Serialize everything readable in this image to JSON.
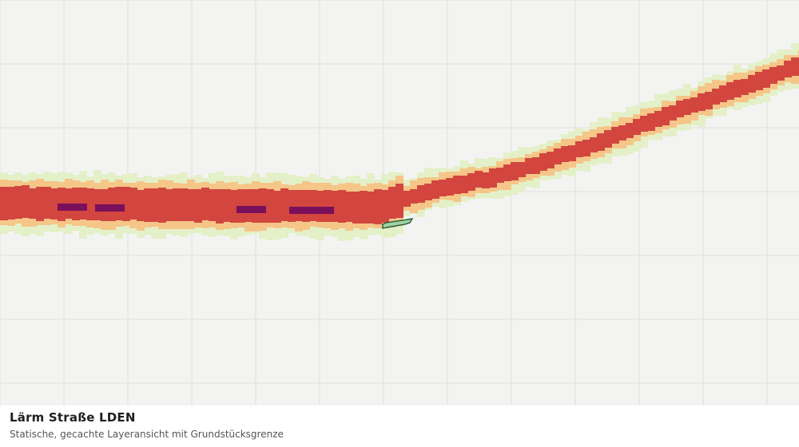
{
  "layer": {
    "title": "Lärm Straße LDEN",
    "subtitle": "Statische, gecachte Layeransicht mit Grundstücksgrenze"
  },
  "legend_colors": {
    "lowest": "#e4f0c8",
    "low": "#f5c688",
    "high": "#d2463f",
    "highest": "#7a0f5c"
  },
  "map": {
    "background": "#f3f4f2",
    "grid_color": "#dfe1de",
    "parcel_fill": "#9fd3a6",
    "parcel_stroke": "#2b5a34"
  }
}
